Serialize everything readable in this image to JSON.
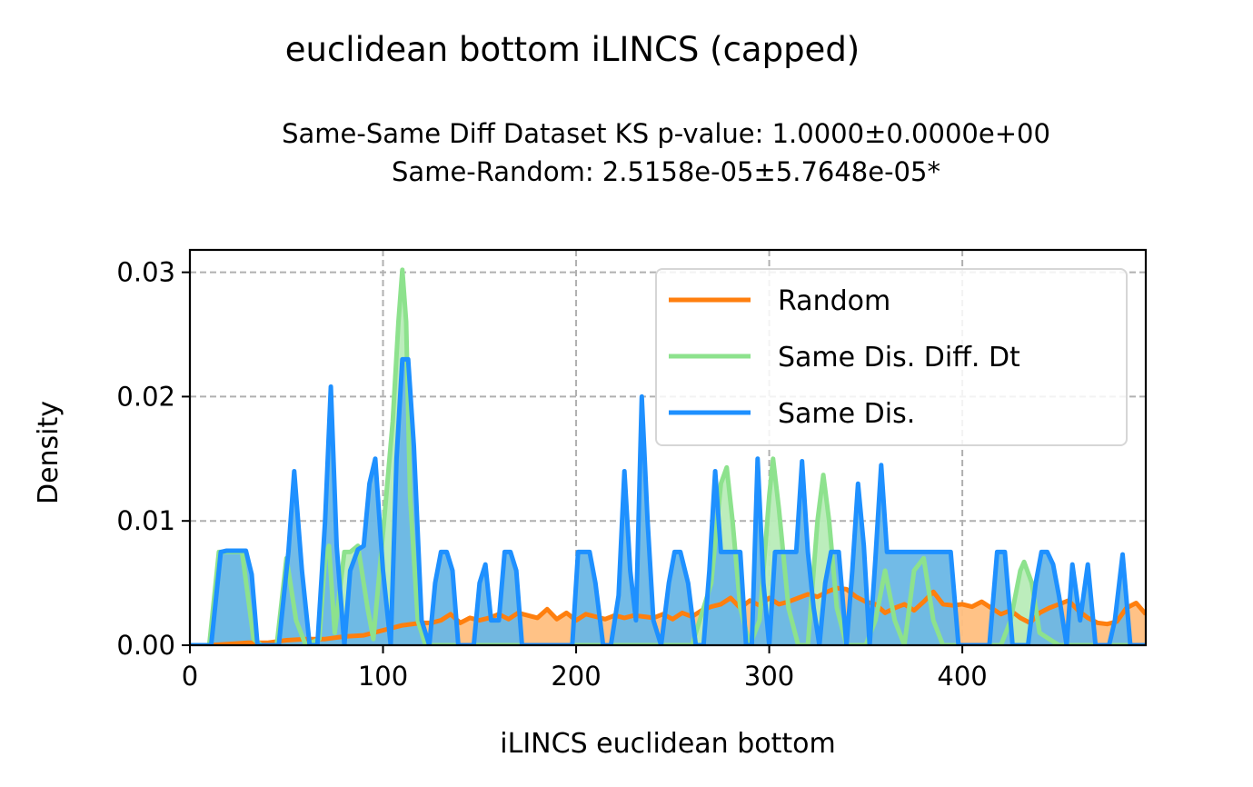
{
  "figure": {
    "title": "euclidean bottom iLINCS (capped)",
    "subtitle_line1": "Same-Same Diff Dataset  KS p-value: 1.0000±0.0000e+00",
    "subtitle_line2": "Same-Random: 2.5158e-05±5.7648e-05*"
  },
  "chart_data": {
    "type": "area",
    "xlabel": "iLINCS euclidean bottom",
    "ylabel": "Density",
    "xlim": [
      0,
      495
    ],
    "ylim": [
      0,
      0.0318
    ],
    "x_ticks": [
      0,
      100,
      200,
      300,
      400
    ],
    "x_tick_labels": [
      "0",
      "100",
      "200",
      "300",
      "400"
    ],
    "y_ticks": [
      0,
      0.01,
      0.02,
      0.03
    ],
    "y_tick_labels": [
      "0.00",
      "0.01",
      "0.02",
      "0.03"
    ],
    "grid": true,
    "legend_position": "top-right",
    "series": [
      {
        "name": "Random",
        "color": "#ff7f0e",
        "fill": "#ffbf80",
        "x": [
          0,
          10,
          20,
          30,
          40,
          50,
          60,
          70,
          80,
          90,
          100,
          110,
          120,
          125,
          130,
          135,
          140,
          145,
          150,
          155,
          160,
          165,
          170,
          175,
          180,
          185,
          190,
          195,
          200,
          205,
          210,
          215,
          220,
          225,
          230,
          235,
          240,
          245,
          250,
          255,
          260,
          265,
          270,
          275,
          280,
          285,
          290,
          295,
          300,
          305,
          310,
          315,
          320,
          325,
          330,
          335,
          340,
          345,
          350,
          355,
          360,
          365,
          370,
          375,
          380,
          385,
          390,
          395,
          400,
          405,
          410,
          415,
          420,
          425,
          430,
          435,
          440,
          445,
          450,
          455,
          460,
          465,
          470,
          475,
          480,
          485,
          490,
          495
        ],
        "values": [
          0,
          0,
          0.0001,
          0.0002,
          0.0002,
          0.0004,
          0.0005,
          0.0005,
          0.0007,
          0.0008,
          0.0012,
          0.0016,
          0.0018,
          0.0018,
          0.002,
          0.0025,
          0.0018,
          0.0022,
          0.002,
          0.0022,
          0.0025,
          0.0021,
          0.0026,
          0.0024,
          0.0022,
          0.0029,
          0.0021,
          0.0026,
          0.002,
          0.0025,
          0.0023,
          0.0021,
          0.0024,
          0.0022,
          0.0024,
          0.0023,
          0.0022,
          0.0025,
          0.0021,
          0.0026,
          0.0023,
          0.0028,
          0.0031,
          0.0033,
          0.0038,
          0.003,
          0.0036,
          0.0032,
          0.0038,
          0.0033,
          0.0035,
          0.0038,
          0.0041,
          0.0039,
          0.0043,
          0.0046,
          0.0045,
          0.0039,
          0.0035,
          0.0033,
          0.0026,
          0.003,
          0.0033,
          0.0028,
          0.0035,
          0.0043,
          0.0033,
          0.0032,
          0.0033,
          0.0031,
          0.0035,
          0.003,
          0.0025,
          0.0028,
          0.0022,
          0.0018,
          0.0026,
          0.003,
          0.0033,
          0.0036,
          0.0028,
          0.0022,
          0.0018,
          0.0017,
          0.0019,
          0.003,
          0.0034,
          0.0025
        ]
      },
      {
        "name": "Same Dis. Diff. Dt",
        "color": "#8de28d",
        "fill": "#b8ecb8",
        "x": [
          10,
          15,
          20,
          27,
          33,
          37,
          45,
          50,
          55,
          60,
          67,
          70,
          72,
          75,
          80,
          83,
          87,
          92,
          95,
          100,
          105,
          108,
          110,
          112,
          114,
          118,
          122,
          130,
          140,
          150,
          160,
          170,
          180,
          200,
          220,
          240,
          260,
          270,
          275,
          278,
          281,
          285,
          290,
          295,
          300,
          302,
          305,
          310,
          315,
          320,
          325,
          328,
          331,
          335,
          340,
          350,
          355,
          360,
          365,
          370,
          375,
          380,
          385,
          390,
          395,
          400,
          410,
          420,
          425,
          430,
          432,
          436,
          440,
          450,
          460,
          470,
          480,
          490,
          495
        ],
        "values": [
          0,
          0.0075,
          0.0075,
          0.0075,
          0.0005,
          0,
          0,
          0.007,
          0.002,
          0,
          0.0005,
          0.007,
          0.008,
          0.001,
          0.0075,
          0.0075,
          0.008,
          0.003,
          0.0005,
          0.009,
          0.018,
          0.026,
          0.0302,
          0.026,
          0.012,
          0.002,
          0,
          0,
          0,
          0,
          0,
          0,
          0,
          0,
          0,
          0,
          0,
          0.005,
          0.013,
          0.0143,
          0.01,
          0.003,
          0,
          0.002,
          0.012,
          0.015,
          0.011,
          0.003,
          0,
          0,
          0.01,
          0.0137,
          0.01,
          0.003,
          0,
          0,
          0.002,
          0.006,
          0.002,
          0,
          0.006,
          0.007,
          0.002,
          0,
          0,
          0,
          0,
          0,
          0.002,
          0.006,
          0.0067,
          0.005,
          0.001,
          0,
          0,
          0,
          0,
          0,
          0
        ]
      },
      {
        "name": "Same Dis.",
        "color": "#1e90ff",
        "fill": "#6ab7e6",
        "x": [
          0,
          11,
          16,
          19,
          22,
          26,
          29,
          32,
          35,
          38,
          42,
          46,
          51,
          54,
          58,
          62,
          66,
          70,
          73,
          76,
          80,
          83,
          87,
          90,
          93,
          96,
          100,
          104,
          107,
          110,
          113,
          116,
          120,
          124,
          127,
          130,
          133,
          136,
          139,
          143,
          147,
          150,
          153,
          156,
          160,
          163,
          166,
          169,
          172,
          176,
          180,
          184,
          190,
          194,
          198,
          201,
          204,
          207,
          210,
          214,
          218,
          222,
          225,
          228,
          231,
          234,
          237,
          240,
          244,
          248,
          251,
          254,
          258,
          262,
          266,
          269,
          272,
          275,
          278,
          281,
          285,
          288,
          291,
          294,
          297,
          300,
          303,
          306,
          310,
          314,
          317,
          320,
          323,
          326,
          329,
          332,
          336,
          340,
          343,
          346,
          349,
          352,
          355,
          358,
          361,
          364,
          367,
          371,
          390,
          394,
          398,
          402,
          406,
          410,
          414,
          418,
          422,
          426,
          430,
          434,
          438,
          441,
          444,
          447,
          450,
          454,
          457,
          461,
          465,
          469,
          473,
          476,
          479,
          483,
          487,
          495
        ],
        "values": [
          0,
          0,
          0.0075,
          0.0076,
          0.0076,
          0.0076,
          0.0076,
          0.0057,
          0,
          0,
          0,
          0,
          0.0075,
          0.014,
          0.006,
          0,
          0,
          0.01,
          0.0208,
          0.008,
          0,
          0.006,
          0.0077,
          0.008,
          0.013,
          0.015,
          0.006,
          0,
          0.015,
          0.023,
          0.023,
          0.016,
          0.002,
          0,
          0.005,
          0.0075,
          0.0075,
          0.006,
          0,
          0,
          0,
          0.005,
          0.0065,
          0.002,
          0.002,
          0.0075,
          0.0075,
          0.006,
          0,
          0,
          0,
          0,
          0,
          0,
          0,
          0.0075,
          0.0075,
          0.0075,
          0.005,
          0,
          0,
          0.004,
          0.014,
          0.006,
          0.002,
          0.02,
          0.01,
          0.002,
          0,
          0.005,
          0.0075,
          0.0075,
          0.005,
          0,
          0,
          0.006,
          0.014,
          0.0075,
          0.0075,
          0.0075,
          0.0075,
          0,
          0,
          0.015,
          0.005,
          0,
          0.0075,
          0.0075,
          0.0075,
          0.0075,
          0.0148,
          0.0075,
          0.003,
          0,
          0.005,
          0.0075,
          0.0075,
          0,
          0.006,
          0.013,
          0.008,
          0,
          0.007,
          0.0145,
          0.0075,
          0.0075,
          0.0075,
          0.0075,
          0.0075,
          0.0075,
          0,
          0,
          0,
          0,
          0,
          0.0075,
          0.0075,
          0,
          0,
          0,
          0.005,
          0.0075,
          0.0075,
          0.0065,
          0.004,
          0,
          0.0065,
          0.002,
          0.0065,
          0,
          0,
          0,
          0.002,
          0.0073,
          0,
          0
        ]
      }
    ]
  }
}
